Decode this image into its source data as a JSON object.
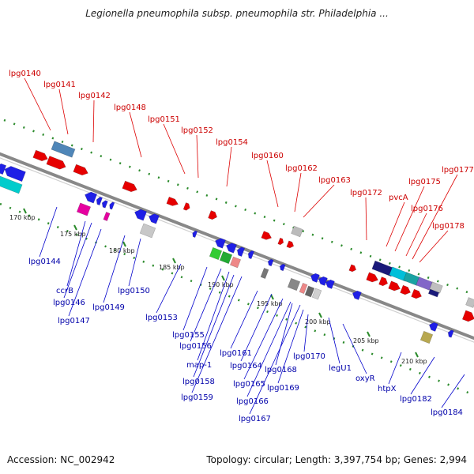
{
  "title": "Legionella pneumophila subsp. pneumophila str. Philadelphia ...",
  "footer": {
    "accession": "Accession: NC_002942",
    "topology": "Topology: circular; Length: 3,397,754 bp; Genes: 2,994"
  },
  "colors": {
    "top_label": "#cc0000",
    "bottom_label": "#0000aa",
    "backbone": "#888888",
    "dotted_track": "#2a8a2a"
  },
  "scale_labels": [
    "170 kbp",
    "175 kbp",
    "180 kbp",
    "185 kbp",
    "190 kbp",
    "195 kbp",
    "200 kbp",
    "205 kbp",
    "210 kbp"
  ],
  "top_labels": [
    "lpg0140",
    "lpg0141",
    "lpg0142",
    "lpg0148",
    "lpg0151",
    "lpg0152",
    "lpg0154",
    "lpg0160",
    "lpg0162",
    "lpg0163",
    "lpg0172",
    "pvcA",
    "lpg0175",
    "lpg0176",
    "lpg0177",
    "lpg0178"
  ],
  "bottom_labels": [
    "lpg0144",
    "ccrB",
    "lpg0146",
    "lpg0147",
    "lpg0149",
    "lpg0150",
    "lpg0153",
    "lpg0155",
    "lpg0156",
    "map-1",
    "lpg0158",
    "lpg0159",
    "lpg0161",
    "lpg0164",
    "lpg0165",
    "lpg0166",
    "lpg0167",
    "lpg0168",
    "lpg0169",
    "lpg0170",
    "legU1",
    "oxyR",
    "htpX",
    "lpg0182",
    "lpg0184"
  ]
}
